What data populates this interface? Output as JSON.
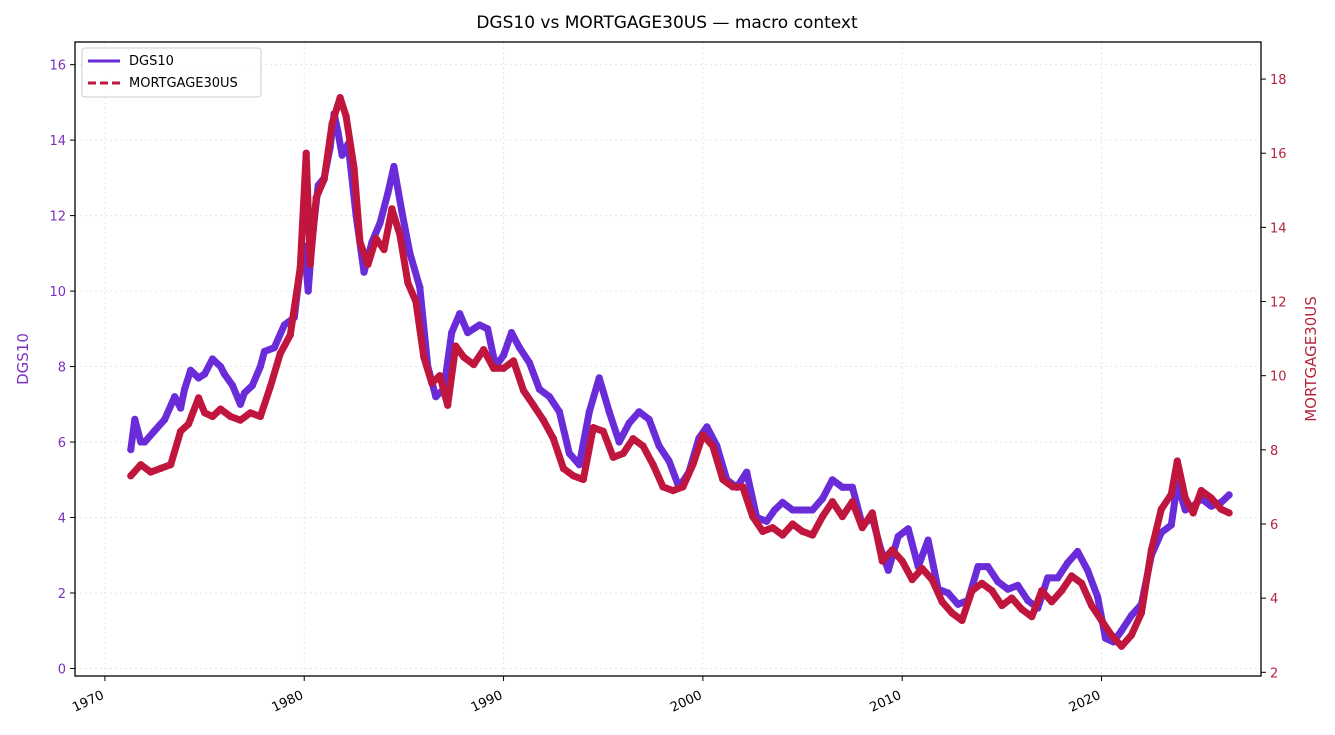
{
  "chart_data": {
    "type": "line",
    "title": "DGS10 vs MORTGAGE30US — macro context",
    "ylabel_left": "DGS10",
    "ylabel_right": "MORTGAGE30US",
    "xlabel": "",
    "x_ticks": [
      "1970",
      "1980",
      "1990",
      "2000",
      "2010",
      "2020"
    ],
    "y_left_ticks": [
      "0",
      "2",
      "4",
      "6",
      "8",
      "10",
      "12",
      "14",
      "16"
    ],
    "y_right_ticks": [
      "2",
      "4",
      "6",
      "8",
      "10",
      "12",
      "14",
      "16",
      "18"
    ],
    "xlim": [
      1968.5,
      2028.0
    ],
    "ylim_left": [
      -0.2,
      16.6
    ],
    "ylim_right": [
      1.9,
      19.0
    ],
    "grid": true,
    "legend_position": "top-left",
    "colors": {
      "DGS10": "#6a2bd8",
      "MORTGAGE30US": "#c0163e",
      "left_axis": "#7b2fbf",
      "right_axis": "#b5263f"
    },
    "series": [
      {
        "name": "DGS10",
        "axis": "left",
        "style": "solid",
        "x": [
          1971.3,
          1971.5,
          1971.8,
          1972.0,
          1972.5,
          1973.0,
          1973.5,
          1973.8,
          1974.0,
          1974.3,
          1974.7,
          1975.0,
          1975.4,
          1975.8,
          1976.0,
          1976.4,
          1976.8,
          1977.0,
          1977.4,
          1977.8,
          1978.0,
          1978.5,
          1979.0,
          1979.5,
          1979.8,
          1980.0,
          1980.2,
          1980.4,
          1980.7,
          1981.0,
          1981.3,
          1981.5,
          1981.7,
          1981.9,
          1982.2,
          1982.6,
          1983.0,
          1983.4,
          1983.8,
          1984.2,
          1984.5,
          1984.9,
          1985.3,
          1985.8,
          1986.2,
          1986.6,
          1987.0,
          1987.4,
          1987.8,
          1988.2,
          1988.8,
          1989.2,
          1989.6,
          1990.0,
          1990.4,
          1990.8,
          1991.3,
          1991.8,
          1992.3,
          1992.8,
          1993.3,
          1993.8,
          1994.3,
          1994.8,
          1995.3,
          1995.8,
          1996.3,
          1996.8,
          1997.3,
          1997.8,
          1998.3,
          1998.8,
          1999.3,
          1999.8,
          2000.2,
          2000.7,
          2001.2,
          2001.7,
          2002.2,
          2002.7,
          2003.2,
          2003.6,
          2004.0,
          2004.5,
          2005.0,
          2005.5,
          2006.0,
          2006.5,
          2007.0,
          2007.5,
          2008.0,
          2008.5,
          2008.9,
          2009.3,
          2009.8,
          2010.3,
          2010.8,
          2011.3,
          2011.8,
          2012.3,
          2012.8,
          2013.3,
          2013.8,
          2014.3,
          2014.8,
          2015.3,
          2015.8,
          2016.3,
          2016.8,
          2017.3,
          2017.8,
          2018.3,
          2018.8,
          2019.3,
          2019.8,
          2020.2,
          2020.6,
          2021.0,
          2021.5,
          2022.0,
          2022.5,
          2023.0,
          2023.5,
          2023.8,
          2024.2,
          2024.6,
          2025.0,
          2025.5,
          2026.0,
          2026.4
        ],
        "y": [
          5.8,
          6.6,
          6.0,
          6.0,
          6.3,
          6.6,
          7.2,
          6.9,
          7.4,
          7.9,
          7.7,
          7.8,
          8.2,
          8.0,
          7.8,
          7.5,
          7.0,
          7.3,
          7.5,
          8.0,
          8.4,
          8.5,
          9.1,
          9.3,
          10.6,
          11.2,
          10.0,
          11.4,
          12.8,
          13.0,
          13.8,
          14.7,
          14.2,
          13.6,
          13.9,
          12.0,
          10.5,
          11.3,
          11.8,
          12.6,
          13.3,
          12.1,
          11.0,
          10.1,
          8.0,
          7.2,
          7.4,
          8.9,
          9.4,
          8.9,
          9.1,
          9.0,
          8.0,
          8.3,
          8.9,
          8.5,
          8.1,
          7.4,
          7.2,
          6.8,
          5.7,
          5.4,
          6.8,
          7.7,
          6.8,
          6.0,
          6.5,
          6.8,
          6.6,
          5.9,
          5.5,
          4.8,
          5.2,
          6.1,
          6.4,
          5.9,
          5.0,
          4.8,
          5.2,
          4.0,
          3.9,
          4.2,
          4.4,
          4.2,
          4.2,
          4.2,
          4.5,
          5.0,
          4.8,
          4.8,
          3.8,
          4.0,
          3.2,
          2.6,
          3.5,
          3.7,
          2.7,
          3.4,
          2.1,
          2.0,
          1.7,
          1.8,
          2.7,
          2.7,
          2.3,
          2.1,
          2.2,
          1.8,
          1.6,
          2.4,
          2.4,
          2.8,
          3.1,
          2.6,
          1.9,
          0.8,
          0.7,
          1.0,
          1.4,
          1.7,
          3.0,
          3.6,
          3.8,
          4.9,
          4.2,
          4.3,
          4.5,
          4.3,
          4.4,
          4.6
        ]
      },
      {
        "name": "MORTGAGE30US",
        "axis": "right",
        "style": "dashed",
        "x": [
          1971.3,
          1971.8,
          1972.3,
          1972.8,
          1973.3,
          1973.8,
          1974.2,
          1974.7,
          1975.0,
          1975.4,
          1975.8,
          1976.3,
          1976.8,
          1977.3,
          1977.8,
          1978.3,
          1978.8,
          1979.3,
          1979.8,
          1980.1,
          1980.3,
          1980.6,
          1981.0,
          1981.4,
          1981.8,
          1982.1,
          1982.5,
          1982.8,
          1983.2,
          1983.6,
          1984.0,
          1984.4,
          1984.8,
          1985.2,
          1985.6,
          1986.0,
          1986.4,
          1986.8,
          1987.2,
          1987.6,
          1988.0,
          1988.5,
          1989.0,
          1989.5,
          1990.0,
          1990.5,
          1991.0,
          1991.5,
          1992.0,
          1992.5,
          1993.0,
          1993.5,
          1994.0,
          1994.5,
          1995.0,
          1995.5,
          1996.0,
          1996.5,
          1997.0,
          1997.5,
          1998.0,
          1998.5,
          1999.0,
          1999.5,
          2000.0,
          2000.5,
          2001.0,
          2001.5,
          2002.0,
          2002.5,
          2003.0,
          2003.5,
          2004.0,
          2004.5,
          2005.0,
          2005.5,
          2006.0,
          2006.5,
          2007.0,
          2007.5,
          2008.0,
          2008.5,
          2009.0,
          2009.5,
          2010.0,
          2010.5,
          2011.0,
          2011.5,
          2012.0,
          2012.5,
          2013.0,
          2013.5,
          2014.0,
          2014.5,
          2015.0,
          2015.5,
          2016.0,
          2016.5,
          2017.0,
          2017.5,
          2018.0,
          2018.5,
          2019.0,
          2019.5,
          2020.0,
          2020.5,
          2021.0,
          2021.5,
          2022.0,
          2022.5,
          2023.0,
          2023.5,
          2023.8,
          2024.2,
          2024.6,
          2025.0,
          2025.5,
          2026.0,
          2026.4
        ],
        "y": [
          7.3,
          7.6,
          7.4,
          7.5,
          7.6,
          8.5,
          8.7,
          9.4,
          9.0,
          8.9,
          9.1,
          8.9,
          8.8,
          9.0,
          8.9,
          9.7,
          10.6,
          11.1,
          12.9,
          16.0,
          13.0,
          14.8,
          15.3,
          16.8,
          17.5,
          17.0,
          15.6,
          13.6,
          13.0,
          13.7,
          13.4,
          14.5,
          13.8,
          12.5,
          12.0,
          10.5,
          9.8,
          10.0,
          9.2,
          10.8,
          10.5,
          10.3,
          10.7,
          10.2,
          10.2,
          10.4,
          9.6,
          9.2,
          8.8,
          8.3,
          7.5,
          7.3,
          7.2,
          8.6,
          8.5,
          7.8,
          7.9,
          8.3,
          8.1,
          7.6,
          7.0,
          6.9,
          7.0,
          7.6,
          8.4,
          8.1,
          7.2,
          7.0,
          7.0,
          6.2,
          5.8,
          5.9,
          5.7,
          6.0,
          5.8,
          5.7,
          6.2,
          6.6,
          6.2,
          6.6,
          5.9,
          6.3,
          5.0,
          5.3,
          5.0,
          4.5,
          4.8,
          4.5,
          3.9,
          3.6,
          3.4,
          4.2,
          4.4,
          4.2,
          3.8,
          4.0,
          3.7,
          3.5,
          4.2,
          3.9,
          4.2,
          4.6,
          4.4,
          3.8,
          3.4,
          3.0,
          2.7,
          3.0,
          3.6,
          5.3,
          6.4,
          6.8,
          7.7,
          6.7,
          6.3,
          6.9,
          6.7,
          6.4,
          6.3
        ]
      }
    ]
  }
}
